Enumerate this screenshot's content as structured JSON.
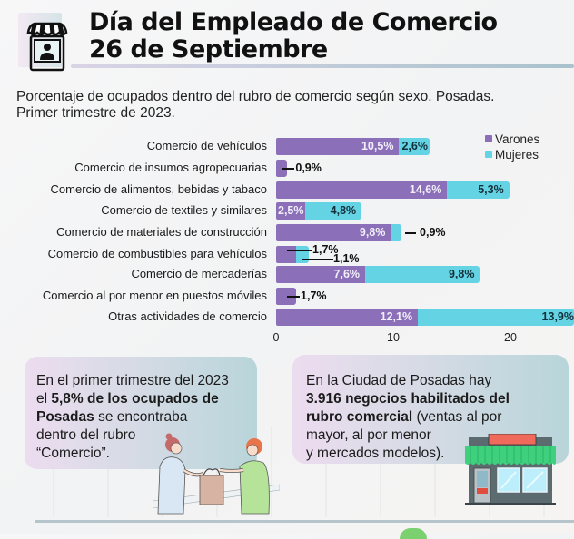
{
  "header": {
    "title_line1": "Día del Empleado de Comercio",
    "title_line2": "26 de Septiembre",
    "icon": "storefront-person-icon"
  },
  "subtitle": {
    "line1": "Porcentaje de ocupados dentro del rubro de comercio según sexo. Posadas.",
    "line2": "Primer trimestre de 2023."
  },
  "chart_data": {
    "type": "bar",
    "orientation": "horizontal",
    "stacked": true,
    "title": "Porcentaje de ocupados dentro del rubro de comercio según sexo. Posadas. Primer trimestre de 2023.",
    "xlabel": "",
    "ylabel": "",
    "xlim": [
      0,
      26
    ],
    "xticks": [
      "0",
      "10",
      "20"
    ],
    "grid": false,
    "legend_position": "top-right",
    "categories": [
      "Comercio de vehículos",
      "Comercio de insumos agropecuarias",
      "Comercio de alimentos, bebidas y tabaco",
      "Comercio de textiles y  similares",
      "Comercio de materiales de construcción",
      "Comercio de combustibles para vehículos",
      "Comercio de mercaderías",
      "Comercio al por menor en puestos móviles",
      "Otras actividades de comercio"
    ],
    "series": [
      {
        "name": "Varones",
        "color": "#8b6fb8",
        "values": [
          10.5,
          0.9,
          14.6,
          2.5,
          9.8,
          1.7,
          7.6,
          1.7,
          12.1
        ],
        "labels": [
          "10,5%",
          "0,9%",
          "14,6%",
          "2,5%",
          "9,8%",
          "1,7%",
          "7,6%",
          "1,7%",
          "12,1%"
        ]
      },
      {
        "name": "Mujeres",
        "color": "#64d3e4",
        "values": [
          2.6,
          null,
          5.3,
          4.8,
          0.9,
          1.1,
          9.8,
          null,
          13.9
        ],
        "labels": [
          "2,6%",
          null,
          "5,3%",
          "4,8%",
          "0,9%",
          "1,1%",
          "9,8%",
          null,
          "13,9%"
        ]
      }
    ]
  },
  "cards": {
    "left": {
      "line1": "En el primer trimestre del 2023",
      "line2_plain": "el ",
      "line2_bold": "5,8% de los ocupados de",
      "line3_bold": "Posadas",
      "line3_plain": " se encontraba",
      "line4": "dentro del rubro",
      "line5": "“Comercio”."
    },
    "right": {
      "line1": "En la Ciudad de Posadas hay",
      "line2_bold": "3.916 negocios habilitados del",
      "line3_bold": "rubro comercial",
      "line3_plain": " (ventas al por",
      "line4": "mayor, al por menor",
      "line5": "y mercados modelos)."
    }
  },
  "illustrations": {
    "left": "shop-clerk-handing-bag-icon",
    "right": "storefront-green-awning-icon"
  }
}
